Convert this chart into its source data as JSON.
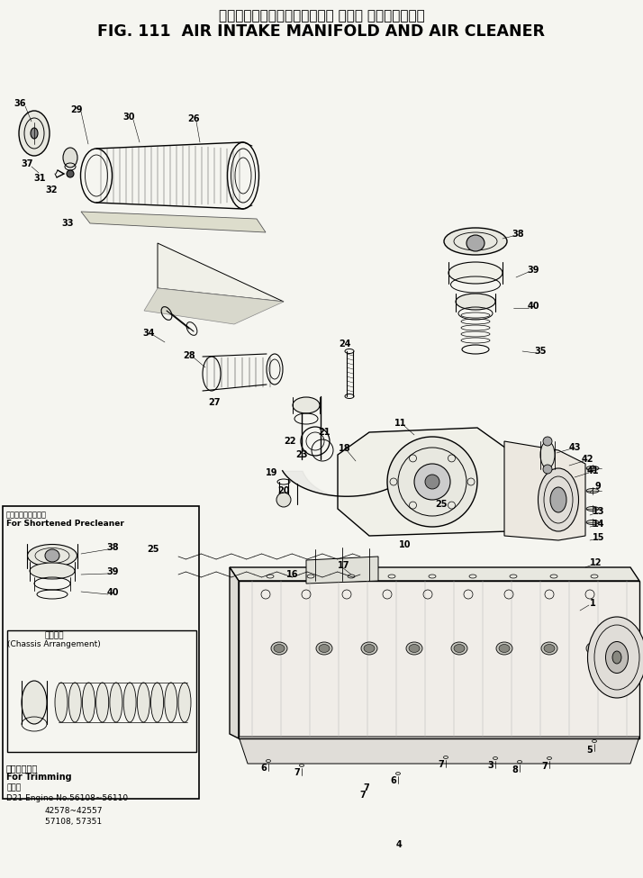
{
  "title_japanese": "エアーインテークマニホールド および エアークリーナ",
  "title_english": "FIG. 111  AIR INTAKE MANIFOLD AND AIR CLEANER",
  "bg_color": "#f5f5f0",
  "title_color": "#000000",
  "footer_lines": [
    "トリミング用",
    "For Trimming",
    "図番号",
    "D21 Engine No.56108~56110",
    "42578~42557",
    "57108, 57351"
  ],
  "inset_label_top": "縮型プリクリーナ用",
  "inset_label_en": "For Shortened Precleaner",
  "inset_label2_jp": "車体準配",
  "inset_label2_en": "(Chassis Arrangement)",
  "fig_width": 7.14,
  "fig_height": 9.75,
  "dpi": 100
}
